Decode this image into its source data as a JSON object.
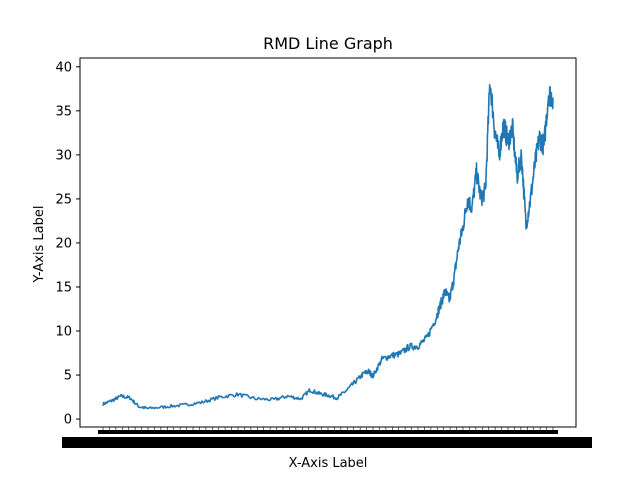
{
  "chart_data": {
    "type": "line",
    "title": "RMD Line Graph",
    "xlabel": "X-Axis Label",
    "ylabel": "Y-Axis Label",
    "ylim": [
      -0.9,
      41.0
    ],
    "y_ticks": [
      0,
      5,
      10,
      15,
      20,
      25,
      30,
      35,
      40
    ],
    "x_ticks_note": "dense overlapping date tick labels (illegible)",
    "grid": false,
    "legend": "none",
    "series": [
      {
        "color": "#1f77b4",
        "x": [
          0,
          0.02,
          0.04,
          0.06,
          0.08,
          0.1,
          0.14,
          0.18,
          0.22,
          0.26,
          0.3,
          0.34,
          0.38,
          0.41,
          0.44,
          0.46,
          0.48,
          0.5,
          0.52,
          0.54,
          0.56,
          0.58,
          0.59,
          0.6,
          0.62,
          0.64,
          0.66,
          0.68,
          0.7,
          0.72,
          0.74,
          0.75,
          0.76,
          0.77,
          0.78,
          0.79,
          0.8,
          0.81,
          0.82,
          0.83,
          0.84,
          0.85,
          0.86,
          0.87,
          0.88,
          0.89,
          0.9,
          0.91,
          0.92,
          0.93,
          0.94,
          0.95,
          0.96,
          0.97,
          0.98,
          0.99,
          1.0
        ],
        "values": [
          1.7,
          2.1,
          2.6,
          2.4,
          1.4,
          1.2,
          1.4,
          1.6,
          1.9,
          2.5,
          2.8,
          2.3,
          2.2,
          2.6,
          2.3,
          3.3,
          2.9,
          2.7,
          2.4,
          3.2,
          4.2,
          5.2,
          5.4,
          4.9,
          6.8,
          7.2,
          7.4,
          8.2,
          8.3,
          9.2,
          11.5,
          13.0,
          14.5,
          13.5,
          16.0,
          19.5,
          21.8,
          25.0,
          24.0,
          28.0,
          25.0,
          26.0,
          38.5,
          33.0,
          30.0,
          33.5,
          31.5,
          33.0,
          27.5,
          30.0,
          22.0,
          25.0,
          29.0,
          32.0,
          31.0,
          37.0,
          36.5
        ]
      }
    ]
  }
}
